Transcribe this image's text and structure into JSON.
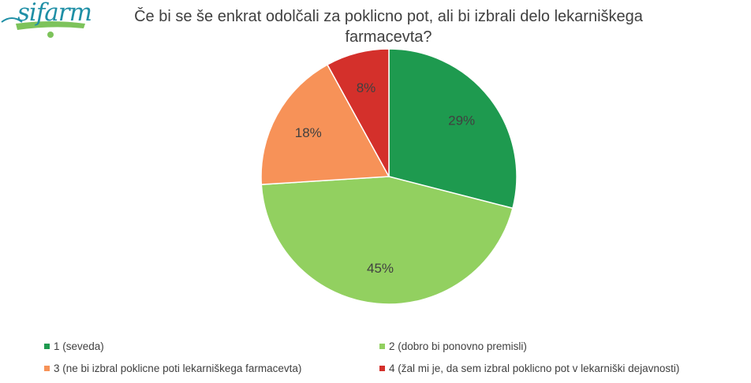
{
  "logo": {
    "text": "sifarm"
  },
  "chart_data": {
    "type": "pie",
    "title": "Če bi se še enkrat odločali za poklicno pot, ali bi izbrali delo lekarniškega farmacevta?",
    "title_line1": "Če bi se še enkrat odolčali za poklicno pot, ali bi izbrali delo lekarniškega",
    "title_line2": "farmacevta?",
    "categories": [
      "1 (seveda)",
      "2 (dobro bi ponovno premisli)",
      "3 (ne bi izbral poklicne poti lekarniškega farmacevta)",
      "4 (žal mi je, da sem izbral poklicno pot v lekarniški dejavnosti)"
    ],
    "values": [
      29,
      45,
      18,
      8
    ],
    "labels": [
      "29%",
      "45%",
      "18%",
      "8%"
    ],
    "colors": [
      "#1e9a4f",
      "#92d060",
      "#f79258",
      "#d4302b"
    ],
    "legend_position": "bottom"
  }
}
